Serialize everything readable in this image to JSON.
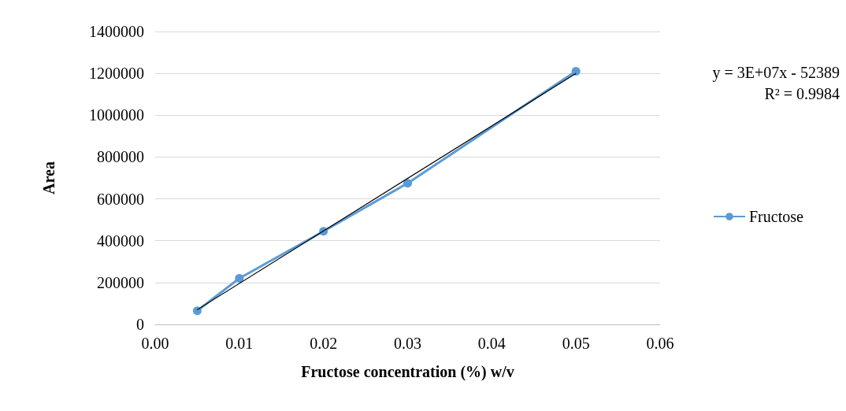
{
  "chart_data": {
    "type": "line",
    "xlabel": "Fructose concentration (%) w/v",
    "ylabel": "Area",
    "series": [
      {
        "name": "Fructose",
        "color": "#5b9bd5",
        "x": [
          0.005,
          0.01,
          0.02,
          0.03,
          0.05
        ],
        "values": [
          65000,
          220000,
          445000,
          675000,
          1210000
        ],
        "marker": "circle"
      },
      {
        "type": "line",
        "color": "#000000",
        "x": [
          0.005,
          0.05
        ],
        "values": [
          70000,
          1200000
        ],
        "marker": "none"
      }
    ],
    "xlim": [
      0,
      0.06
    ],
    "xticks": [
      {
        "value": 0,
        "label": "0.00"
      },
      {
        "value": 0.01,
        "label": "0.01"
      },
      {
        "value": 0.02,
        "label": "0.02"
      },
      {
        "value": 0.03,
        "label": "0.03"
      },
      {
        "value": 0.04,
        "label": "0.04"
      },
      {
        "value": 0.05,
        "label": "0.05"
      },
      {
        "value": 0.06,
        "label": "0.06"
      }
    ],
    "ylim": [
      0,
      1400000
    ],
    "yticks": [
      0,
      200000,
      400000,
      600000,
      800000,
      1000000,
      1200000,
      1400000
    ],
    "grid": "y",
    "legend": "right",
    "annotations": [
      "y = 3E+07x - 52389",
      "R² = 0.9984"
    ]
  }
}
